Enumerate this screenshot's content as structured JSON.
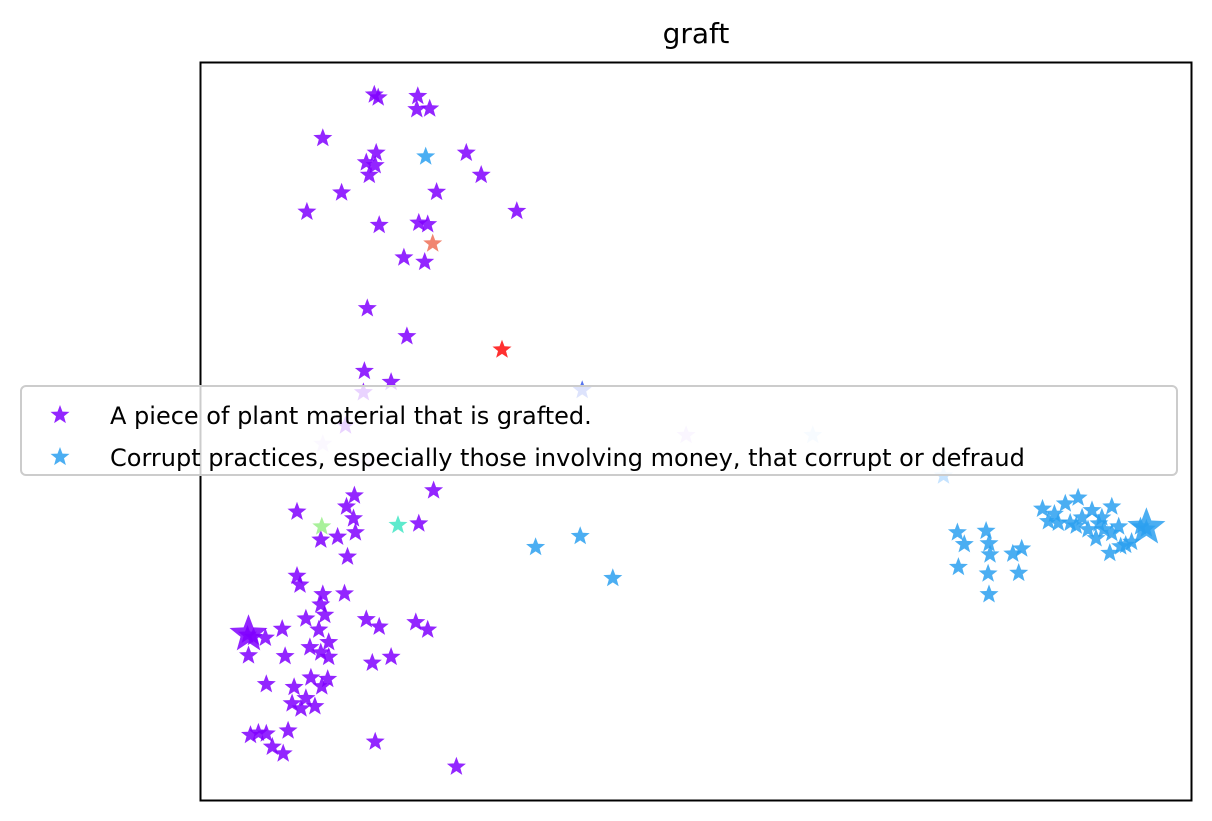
{
  "chart_data": {
    "type": "scatter",
    "title": "graft",
    "xlabel": "",
    "ylabel": "",
    "xlim": [
      0,
      1000
    ],
    "ylim": [
      0,
      1000
    ],
    "grid": false,
    "ticks_visible": false,
    "marker": "star",
    "legend_placement": "center-left",
    "series": [
      {
        "name": "A piece of plant material that is grafted.",
        "color": "#8000ff",
        "points": [
          [
            175,
            957
          ],
          [
            179,
            953
          ],
          [
            219,
            955
          ],
          [
            231,
            938
          ],
          [
            218,
            937
          ],
          [
            123,
            898
          ],
          [
            177,
            878
          ],
          [
            167,
            865
          ],
          [
            176,
            861
          ],
          [
            170,
            848
          ],
          [
            238,
            825
          ],
          [
            283,
            848
          ],
          [
            268,
            878
          ],
          [
            107,
            798
          ],
          [
            142,
            824
          ],
          [
            180,
            780
          ],
          [
            220,
            783
          ],
          [
            229,
            781
          ],
          [
            205,
            736
          ],
          [
            226,
            730
          ],
          [
            319,
            799
          ],
          [
            168,
            667
          ],
          [
            208,
            629
          ],
          [
            165,
            582
          ],
          [
            192,
            567
          ],
          [
            164,
            553
          ],
          [
            235,
            420
          ],
          [
            146,
            508
          ],
          [
            155,
            413
          ],
          [
            147,
            398
          ],
          [
            154,
            382
          ],
          [
            97,
            391
          ],
          [
            220,
            375
          ],
          [
            138,
            357
          ],
          [
            156,
            363
          ],
          [
            121,
            353
          ],
          [
            148,
            330
          ],
          [
            97,
            304
          ],
          [
            100,
            292
          ],
          [
            123,
            279
          ],
          [
            145,
            280
          ],
          [
            121,
            265
          ],
          [
            106,
            246
          ],
          [
            125,
            251
          ],
          [
            167,
            245
          ],
          [
            180,
            235
          ],
          [
            217,
            241
          ],
          [
            229,
            231
          ],
          [
            47,
            224
          ],
          [
            53,
            221
          ],
          [
            65,
            220
          ],
          [
            82,
            232
          ],
          [
            119,
            231
          ],
          [
            110,
            207
          ],
          [
            121,
            200
          ],
          [
            129,
            214
          ],
          [
            129,
            194
          ],
          [
            85,
            195
          ],
          [
            48,
            196
          ],
          [
            173,
            186
          ],
          [
            192,
            194
          ],
          [
            66,
            157
          ],
          [
            94,
            153
          ],
          [
            111,
            166
          ],
          [
            122,
            154
          ],
          [
            128,
            164
          ],
          [
            106,
            138
          ],
          [
            92,
            131
          ],
          [
            101,
            124
          ],
          [
            115,
            127
          ],
          [
            58,
            91
          ],
          [
            50,
            88
          ],
          [
            66,
            90
          ],
          [
            88,
            94
          ],
          [
            72,
            72
          ],
          [
            83,
            63
          ],
          [
            176,
            79
          ],
          [
            258,
            45
          ]
        ]
      },
      {
        "name": "Corrupt practices, especially those involving money, that corrupt or defraud",
        "color": "#2ca0f0",
        "points": [
          [
            227,
            873
          ],
          [
            338,
            343
          ],
          [
            383,
            358
          ],
          [
            416,
            301
          ],
          [
            764,
            363
          ],
          [
            793,
            365
          ],
          [
            796,
            348
          ],
          [
            820,
            334
          ],
          [
            771,
            347
          ],
          [
            797,
            333
          ],
          [
            829,
            341
          ],
          [
            765,
            316
          ],
          [
            795,
            307
          ],
          [
            826,
            308
          ],
          [
            796,
            279
          ],
          [
            850,
            395
          ],
          [
            862,
            388
          ],
          [
            873,
            402
          ],
          [
            886,
            410
          ],
          [
            900,
            393
          ],
          [
            910,
            383
          ],
          [
            920,
            398
          ],
          [
            884,
            372
          ],
          [
            896,
            367
          ],
          [
            907,
            375
          ],
          [
            920,
            362
          ],
          [
            934,
            346
          ],
          [
            949,
            371
          ],
          [
            955,
            368
          ],
          [
            927,
            371
          ],
          [
            940,
            350
          ],
          [
            866,
            376
          ],
          [
            878,
            376
          ],
          [
            904,
            355
          ],
          [
            918,
            335
          ],
          [
            929,
            344
          ],
          [
            856,
            378
          ],
          [
            890,
            383
          ],
          [
            912,
            367
          ]
        ]
      }
    ],
    "highlight_points": [
      {
        "x": 234,
        "y": 755,
        "color": "#f07860"
      },
      {
        "x": 304,
        "y": 611,
        "color": "#ff1a1a"
      },
      {
        "x": 199,
        "y": 373,
        "color": "#4ce8c8"
      },
      {
        "x": 122,
        "y": 371,
        "color": "#a0f090"
      },
      {
        "x": 385,
        "y": 556,
        "color": "#4466ee"
      },
      {
        "x": 750,
        "y": 440,
        "color": "#bfe0ff"
      },
      {
        "x": 618,
        "y": 495,
        "color": "#d0e8ff"
      },
      {
        "x": 490,
        "y": 495,
        "color": "#e0ccff"
      },
      {
        "x": 123,
        "y": 483,
        "color": "#e8d8ff"
      },
      {
        "x": 167,
        "y": 458,
        "color": "#e8d8ff"
      }
    ],
    "large_points": [
      {
        "x": 48,
        "y": 225,
        "color": "#8000ff"
      },
      {
        "x": 955,
        "y": 370,
        "color": "#2ca0f0"
      }
    ]
  }
}
